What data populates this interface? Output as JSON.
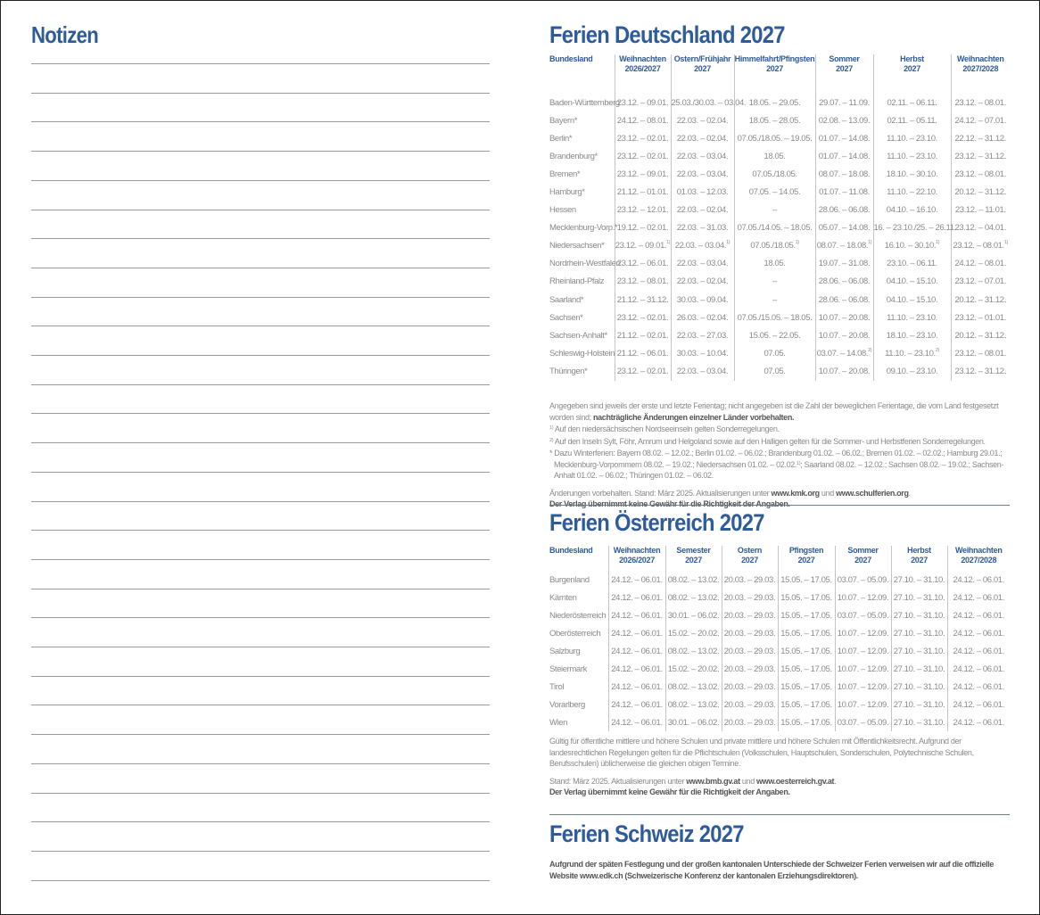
{
  "notes": {
    "title": "Notizen"
  },
  "germany": {
    "title": "Ferien Deutschland 2027",
    "headers": [
      [
        "Bundesland",
        ""
      ],
      [
        "Weihnachten",
        "2026/2027"
      ],
      [
        "Ostern/Frühjahr",
        "2027"
      ],
      [
        "Himmelfahrt/Pfingsten",
        "2027"
      ],
      [
        "Sommer",
        "2027"
      ],
      [
        "Herbst",
        "2027"
      ],
      [
        "Weihnachten",
        "2027/2028"
      ]
    ],
    "rows": [
      [
        "Baden-Württemberg",
        "23.12. – 09.01.",
        "25.03./30.03. – 03.04.",
        "18.05. – 29.05.",
        "29.07. – 11.09.",
        "02.11. – 06.11.",
        "23.12. – 08.01."
      ],
      [
        "Bayern*",
        "24.12. – 08.01.",
        "22.03. – 02.04.",
        "18.05. – 28.05.",
        "02.08. – 13.09.",
        "02.11. – 05.11.",
        "24.12. – 07.01."
      ],
      [
        "Berlin*",
        "23.12. – 02.01.",
        "22.03. – 02.04.",
        "07.05./18.05. – 19.05.",
        "01.07. – 14.08.",
        "11.10. – 23.10.",
        "22.12. – 31.12."
      ],
      [
        "Brandenburg*",
        "23.12. – 02.01.",
        "22.03. – 03.04.",
        "18.05.",
        "01.07. – 14.08.",
        "11.10. – 23.10.",
        "23.12. – 31.12."
      ],
      [
        "Bremen*",
        "23.12. – 09.01.",
        "22.03. – 03.04.",
        "07.05./18.05.",
        "08.07. – 18.08.",
        "18.10. – 30.10.",
        "23.12. – 08.01."
      ],
      [
        "Hamburg*",
        "21.12. – 01.01.",
        "01.03. – 12.03.",
        "07.05. – 14.05.",
        "01.07. – 11.08.",
        "11.10. – 22.10.",
        "20.12. – 31.12."
      ],
      [
        "Hessen",
        "23.12. – 12.01.",
        "22.03. – 02.04.",
        "–",
        "28.06. – 06.08.",
        "04.10. – 16.10.",
        "23.12. – 11.01."
      ],
      [
        "Mecklenburg-Vorp.*",
        "19.12. – 02.01.",
        "22.03. – 31.03.",
        "07.05./14.05. – 18.05.",
        "05.07. – 14.08.",
        "16. – 23.10./25. – 26.11.",
        "23.12. – 04.01."
      ],
      [
        "Niedersachsen*",
        {
          "text": "23.12. – 09.01.",
          "note": "1)"
        },
        {
          "text": "22.03. – 03.04.",
          "note": "1)"
        },
        {
          "text": "07.05./18.05.",
          "note": "1)"
        },
        {
          "text": "08.07. – 18.08.",
          "note": "1)"
        },
        {
          "text": "16.10. – 30.10.",
          "note": "1)"
        },
        {
          "text": "23.12. – 08.01.",
          "note": "1)"
        }
      ],
      [
        "Nordrhein-Westfalen",
        "23.12. – 06.01.",
        "22.03. – 03.04.",
        "18.05.",
        "19.07. – 31.08.",
        "23.10. – 06.11.",
        "24.12. – 08.01."
      ],
      [
        "Rheinland-Pfalz",
        "23.12. – 08.01.",
        "22.03. – 02.04.",
        "–",
        "28.06. – 06.08.",
        "04.10. – 15.10.",
        "23.12. – 07.01."
      ],
      [
        "Saarland*",
        "21.12. – 31.12.",
        "30.03. – 09.04.",
        "–",
        "28.06. – 06.08.",
        "04.10. – 15.10.",
        "20.12. – 31.12."
      ],
      [
        "Sachsen*",
        "23.12. – 02.01.",
        "26.03. – 02.04.",
        "07.05./15.05. – 18.05.",
        "10.07. – 20.08.",
        "11.10. – 23.10.",
        "23.12. – 01.01."
      ],
      [
        "Sachsen-Anhalt*",
        "21.12. – 02.01.",
        "22.03. – 27.03.",
        "15.05. – 22.05.",
        "10.07. – 20.08.",
        "18.10. – 23.10.",
        "20.12. – 31.12."
      ],
      [
        "Schleswig-Holstein",
        "21.12. – 06.01.",
        "30.03. – 10.04.",
        "07.05.",
        {
          "text": "03.07. – 14.08.",
          "note": "2)"
        },
        {
          "text": "11.10. – 23.10.",
          "note": "2)"
        },
        "23.12. – 08.01."
      ],
      [
        "Thüringen*",
        "23.12. – 02.01.",
        "22.03. – 03.04.",
        "07.05.",
        "10.07. – 20.08.",
        "09.10. – 23.10.",
        "23.12. – 31.12."
      ]
    ],
    "intro": "Angegeben sind jeweils der erste und letzte Ferientag; nicht angegeben ist die Zahl der beweglichen Ferientage, die vom Land festgesetzt worden sind; ",
    "intro_bold": "nachträgliche Änderungen einzelner Länder vorbehalten.",
    "footnote1_mark": "1)",
    "footnote1": " Auf den niedersächsischen Nordseeinseln gelten Sonderregelungen.",
    "footnote2_mark": "2)",
    "footnote2": " Auf den Inseln Sylt, Föhr, Amrum und Helgoland sowie auf den Halligen gelten für die Sommer- und Herbstferien Sonderregelungen.",
    "winter_a": "* Dazu Winterferien: Bayern 08.02. – 12.02.; Berlin 01.02. – 06.02.; Brandenburg 01.02. – 06.02.; Bremen 01.02. – 02.02.; Hamburg 29.01.; Mecklenburg-Vorpommern 08.02. – 19.02.; Niedersachsen  01.02. – 02.02.",
    "winter_mark": "1)",
    "winter_b": "; Saarland 08.02. – 12.02.; Sachsen 08.02. – 19.02.; Sachsen-Anhalt 01.02. – 06.02.; Thüringen 01.02. – 06.02.",
    "stand_a": "Änderungen vorbehalten. Stand: März 2025. Aktualisierungen unter ",
    "link1": "www.kmk.org",
    "stand_and": " und ",
    "link2": "www.schulferien.org",
    "stand_end": ".",
    "disclaimer": "Der Verlag übernimmt keine Gewähr für die Richtigkeit der Angaben."
  },
  "austria": {
    "title": "Ferien Österreich 2027",
    "headers": [
      [
        "Bundesland",
        ""
      ],
      [
        "Weihnachten",
        "2026/2027"
      ],
      [
        "Semester",
        "2027"
      ],
      [
        "Ostern",
        "2027"
      ],
      [
        "Pfingsten",
        "2027"
      ],
      [
        "Sommer",
        "2027"
      ],
      [
        "Herbst",
        "2027"
      ],
      [
        "Weihnachten",
        "2027/2028"
      ]
    ],
    "rows": [
      [
        "Burgenland",
        "24.12. – 06.01.",
        "08.02. – 13.02.",
        "20.03. – 29.03.",
        "15.05. – 17.05.",
        "03.07. – 05.09.",
        "27.10. – 31.10.",
        "24.12. – 06.01."
      ],
      [
        "Kärnten",
        "24.12. – 06.01.",
        "08.02. – 13.02.",
        "20.03. – 29.03.",
        "15.05. – 17.05.",
        "10.07. – 12.09.",
        "27.10. – 31.10.",
        "24.12. – 06.01."
      ],
      [
        "Niederösterreich",
        "24.12. – 06.01.",
        "30.01. – 06.02.",
        "20.03. – 29.03.",
        "15.05. – 17.05.",
        "03.07. – 05.09.",
        "27.10. – 31.10.",
        "24.12. – 06.01."
      ],
      [
        "Oberösterreich",
        "24.12. – 06.01.",
        "15.02. – 20.02.",
        "20.03. – 29.03.",
        "15.05. – 17.05.",
        "10.07. – 12.09.",
        "27.10. – 31.10.",
        "24.12. – 06.01."
      ],
      [
        "Salzburg",
        "24.12. – 06.01.",
        "08.02. – 13.02.",
        "20.03. – 29.03.",
        "15.05. – 17.05.",
        "10.07. – 12.09.",
        "27.10. – 31.10.",
        "24.12. – 06.01."
      ],
      [
        "Steiermark",
        "24.12. – 06.01.",
        "15.02. – 20.02.",
        "20.03. – 29.03.",
        "15.05. – 17.05.",
        "10.07. – 12.09.",
        "27.10. – 31.10.",
        "24.12. – 06.01."
      ],
      [
        "Tirol",
        "24.12. – 06.01.",
        "08.02. – 13.02.",
        "20.03. – 29.03.",
        "15.05. – 17.05.",
        "10.07. – 12.09.",
        "27.10. – 31.10.",
        "24.12. – 06.01."
      ],
      [
        "Vorarlberg",
        "24.12. – 06.01.",
        "08.02. – 13.02.",
        "20.03. – 29.03.",
        "15.05. – 17.05.",
        "10.07. – 12.09.",
        "27.10. – 31.10.",
        "24.12. – 06.01."
      ],
      [
        "Wien",
        "24.12. – 06.01.",
        "30.01. – 06.02.",
        "20.03. – 29.03.",
        "15.05. – 17.05.",
        "03.07. – 05.09.",
        "27.10. – 31.10.",
        "24.12. – 06.01."
      ]
    ],
    "note": "Gültig für öffentliche mittlere und höhere Schulen und private mittlere und höhere Schulen mit Öffentlichkeitsrecht. Aufgrund der landesrechtlichen Regelungen gelten für die Pflichtschulen (Volksschulen, Hauptschulen, Sonderschulen, Polytechnische Schulen, Berufsschulen) üblicherweise die gleichen obigen Termine.",
    "stand_a": "Stand: März 2025. Aktualisierungen unter ",
    "link1": "www.bmb.gv.at",
    "stand_and": " und ",
    "link2": "www.oesterreich.gv.at",
    "stand_end": ".",
    "disclaimer": "Der Verlag übernimmt keine Gewähr für die Richtigkeit der Angaben."
  },
  "switzerland": {
    "title": "Ferien Schweiz 2027",
    "text": "Aufgrund der späten Festlegung und der großen kantonalen Unterschiede der Schweizer Ferien verweisen wir auf die offizielle Website www.edk.ch (Schweizerische Konferenz der kantonalen Erziehungsdirektoren)."
  },
  "colors": {
    "accent": "#2e5b9a",
    "text": "#8a8a8a",
    "rule": "#9a9a9a"
  }
}
